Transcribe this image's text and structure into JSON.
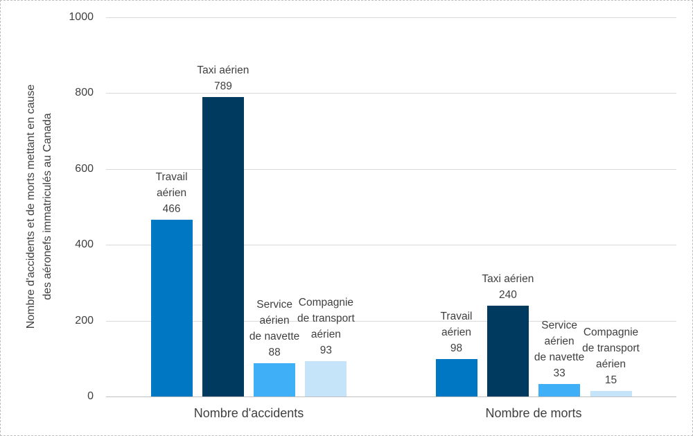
{
  "chart_data": {
    "type": "bar",
    "title": "",
    "ylabel": "Nombre d'accidents et de morts mettant en cause des aéronefs immatriculés au Canada",
    "ylabel_lines": [
      "Nombre d'accidents et de morts mettant en cause",
      "des aéronefs immatriculés au Canada"
    ],
    "xlabel": "",
    "ylim": [
      0,
      1000
    ],
    "yticks": [
      0,
      200,
      400,
      600,
      800,
      1000
    ],
    "grid": true,
    "legend_position": "none",
    "categories": [
      "Nombre d'accidents",
      "Nombre de morts"
    ],
    "series": [
      {
        "name": "Travail aérien",
        "label_lines": [
          "Travail",
          "aérien"
        ],
        "color": "#0077C2",
        "values": [
          466,
          98
        ]
      },
      {
        "name": "Taxi aérien",
        "label_lines": [
          "Taxi aérien"
        ],
        "color": "#003B5F",
        "values": [
          789,
          240
        ]
      },
      {
        "name": "Service aérien de navette",
        "label_lines": [
          "Service",
          "aérien",
          "de navette"
        ],
        "color": "#3FAFF7",
        "values": [
          88,
          33
        ]
      },
      {
        "name": "Compagnie de transport aérien",
        "label_lines": [
          "Compagnie",
          "de transport",
          "aérien"
        ],
        "color": "#C5E4F9",
        "values": [
          93,
          15
        ]
      }
    ],
    "colors": {
      "text": "#3F3F3F",
      "gridline": "#D9D9D9",
      "axis_line": "#BFBFBF",
      "background": "#FFFFFF",
      "border": "#BDBDBD"
    }
  }
}
